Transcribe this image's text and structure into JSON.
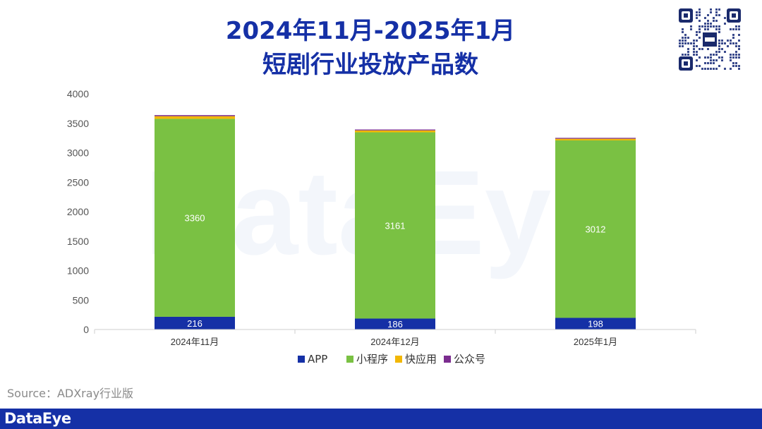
{
  "header": {
    "title_line1": "2024年11月-2025年1月",
    "title_line2": "短剧行业投放产品数"
  },
  "source": "Source：ADXray行业版",
  "footer": {
    "brand": "DataEye"
  },
  "watermark": "DataEye",
  "colors": {
    "title": "#1530a6",
    "footer_bg": "#1530a6",
    "APP": "#1530a6",
    "小程序": "#7ac143",
    "快应用": "#f2b705",
    "公众号": "#7b2c8f"
  },
  "chart_data": {
    "type": "bar",
    "stacked": true,
    "categories": [
      "2024年11月",
      "2024年12月",
      "2025年1月"
    ],
    "series": [
      {
        "name": "APP",
        "values": [
          216,
          186,
          198
        ],
        "color": "#1530a6"
      },
      {
        "name": "小程序",
        "values": [
          3360,
          3161,
          3012
        ],
        "color": "#7ac143"
      },
      {
        "name": "快应用",
        "values": [
          45,
          33,
          28
        ],
        "color": "#f2b705"
      },
      {
        "name": "公众号",
        "values": [
          18,
          15,
          15
        ],
        "color": "#7b2c8f"
      }
    ],
    "data_labels": {
      "APP": [
        "216",
        "186",
        "198"
      ],
      "小程序": [
        "3360",
        "3161",
        "3012"
      ]
    },
    "yticks": [
      "0",
      "500",
      "1000",
      "1500",
      "2000",
      "2500",
      "3000",
      "3500",
      "4000"
    ],
    "ylim": [
      0,
      4000
    ],
    "grid": false,
    "legend_position": "bottom"
  }
}
